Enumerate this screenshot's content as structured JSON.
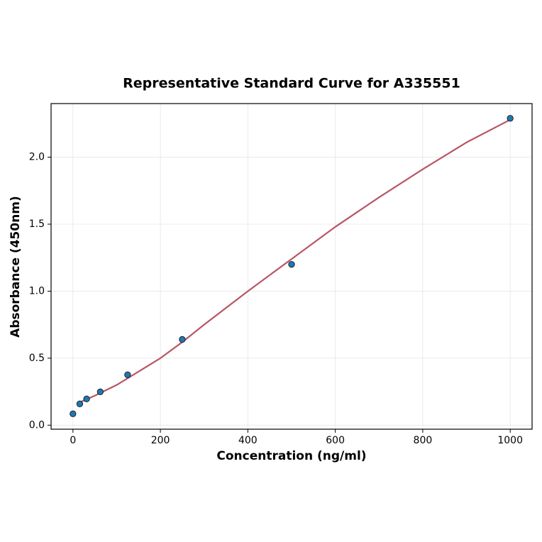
{
  "chart_data": {
    "type": "scatter",
    "title": "Representative Standard Curve for A335551",
    "x_label": "Concentration (ng/ml)",
    "y_label": "Absorbance (450nm)",
    "xlim": [
      -50,
      1050
    ],
    "ylim": [
      -0.03,
      2.4
    ],
    "xticks": [
      0,
      200,
      400,
      600,
      800,
      1000
    ],
    "yticks": [
      {
        "value": 0,
        "label": "0.0"
      },
      0.5,
      {
        "value": 1,
        "label": "1.0"
      },
      1.5,
      {
        "value": 2,
        "label": "2.0"
      }
    ],
    "grid": true,
    "series": [
      {
        "type": "line",
        "color": "#b85565",
        "x": [
          15,
          50,
          100,
          150,
          200,
          250,
          300,
          400,
          500,
          600,
          700,
          800,
          900,
          1000
        ],
        "values": [
          0.17,
          0.22,
          0.3,
          0.4,
          0.5,
          0.62,
          0.75,
          1.0,
          1.24,
          1.48,
          1.7,
          1.91,
          2.11,
          2.28
        ]
      },
      {
        "type": "scatter",
        "color": "#1f77b4",
        "x": [
          0,
          15.6,
          31.25,
          62.5,
          125,
          250,
          500,
          1000
        ],
        "values": [
          0.085,
          0.159,
          0.196,
          0.249,
          0.376,
          0.64,
          1.2,
          2.29
        ]
      }
    ]
  }
}
